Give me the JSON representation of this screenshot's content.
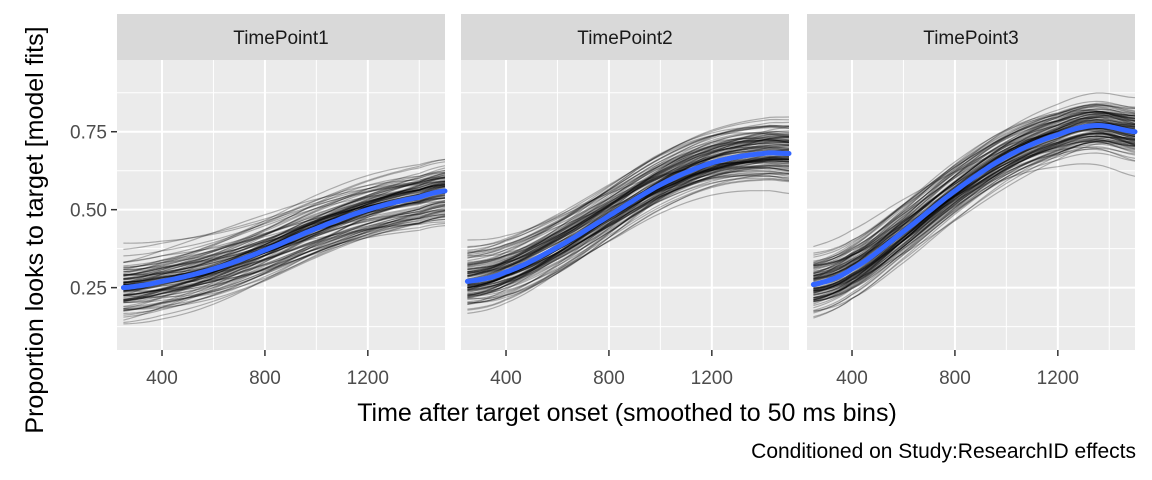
{
  "chart_data": {
    "type": "line",
    "facets": [
      "TimePoint1",
      "TimePoint2",
      "TimePoint3"
    ],
    "xlabel": "Time after target onset (smoothed to 50 ms bins)",
    "ylabel": "Proportion looks to target [model fits]",
    "caption": "Conditioned on Study:ResearchID effects",
    "xlim": [
      225,
      1500
    ],
    "ylim": [
      0.05,
      0.98
    ],
    "x_ticks": [
      400,
      800,
      1200
    ],
    "x_tick_labels": [
      "400",
      "800",
      "1200"
    ],
    "y_ticks": [
      0.25,
      0.5,
      0.75
    ],
    "y_tick_labels": [
      "0.25",
      "0.50",
      "0.75"
    ],
    "grid": true,
    "individual_curves_per_panel": 120,
    "colors": {
      "panel_bg": "#ebebeb",
      "strip_bg": "#d9d9d9",
      "grid": "#ffffff",
      "individual_line": "#000000",
      "mean_line": "#3366ff"
    },
    "series": [
      {
        "facet": "TimePoint1",
        "x": [
          250,
          400,
          600,
          800,
          1000,
          1200,
          1400,
          1500
        ],
        "y": [
          0.25,
          0.27,
          0.31,
          0.37,
          0.44,
          0.5,
          0.54,
          0.56
        ]
      },
      {
        "facet": "TimePoint2",
        "x": [
          250,
          400,
          600,
          800,
          1000,
          1200,
          1400,
          1500
        ],
        "y": [
          0.27,
          0.3,
          0.38,
          0.48,
          0.58,
          0.65,
          0.68,
          0.68
        ]
      },
      {
        "facet": "TimePoint3",
        "x": [
          250,
          400,
          600,
          800,
          1000,
          1200,
          1350,
          1500
        ],
        "y": [
          0.26,
          0.31,
          0.43,
          0.56,
          0.67,
          0.74,
          0.77,
          0.75
        ]
      }
    ]
  }
}
